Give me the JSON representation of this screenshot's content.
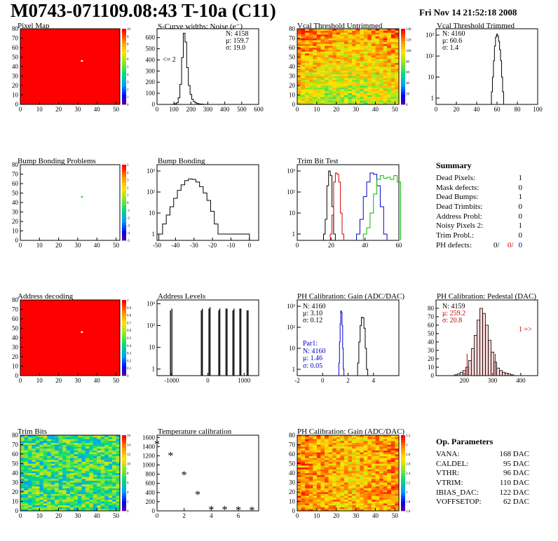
{
  "header": {
    "title": "M0743-071109.08:43 T-10a (C11)",
    "date": "Fri Nov 14 21:52:18 2008"
  },
  "colors": {
    "map_red": "#ff0000",
    "black": "#000000",
    "red": "#cc0000",
    "blue": "#0000cc",
    "green": "#00bb00"
  },
  "panels": {
    "pixel_map": {
      "title": "Pixel Map"
    },
    "scurve": {
      "title": "S-Curve widths: Noise (e⁻)",
      "stats": [
        "N: 4158",
        "μ: 159.7",
        "σ: 19.0"
      ],
      "annotation": "<= 2"
    },
    "vcal_untrimmed": {
      "title": "Vcal Threshold Untrimmed"
    },
    "vcal_trimmed": {
      "title": "Vcal Threshold Trimmed",
      "stats": [
        "N: 4160",
        "μ: 60.6",
        "σ:  1.4"
      ]
    },
    "bump_problems": {
      "title": "Bump Bonding Problems"
    },
    "bump_bonding": {
      "title": "Bump Bonding"
    },
    "trim_bit_test": {
      "title": "Trim Bit Test"
    },
    "summary": {
      "title": "Summary",
      "rows": [
        {
          "label": "Dead Pixels:",
          "value": "1"
        },
        {
          "label": "Mask defects:",
          "value": "0"
        },
        {
          "label": "Dead Bumps:",
          "value": "1"
        },
        {
          "label": "Dead Trimbits:",
          "value": "0"
        },
        {
          "label": "Address Probl:",
          "value": "0"
        },
        {
          "label": "Noisy Pixels 2:",
          "value": "1"
        },
        {
          "label": "Trim Probl.:",
          "value": "0"
        }
      ],
      "ph_label": "PH defects:",
      "ph_values": [
        "0/",
        "0/",
        "0"
      ]
    },
    "address_decoding": {
      "title": "Address decoding"
    },
    "address_levels": {
      "title": "Address Levels"
    },
    "ph_gain": {
      "title": "PH Calibration: Gain (ADC/DAC)",
      "stats": [
        "N: 4160",
        "μ: 3.10",
        "σ: 0.12"
      ],
      "par1": [
        "Par1:",
        "N: 4160",
        "μ: 1.46",
        "σ: 0.05"
      ]
    },
    "ph_pedestal": {
      "title": "PH Calibration: Pedestal (DAC)",
      "stats": [
        "N: 4159",
        "μ: 259.2",
        "σ: 20.8"
      ],
      "annotation": "1 =>"
    },
    "trim_bits": {
      "title": "Trim Bits"
    },
    "temperature": {
      "title": "Temperature calibration"
    },
    "ph_gain_map": {
      "title": "PH Calibration: Gain (ADC/DAC)"
    },
    "op_params": {
      "title": "Op. Parameters",
      "rows": [
        {
          "label": "VANA:",
          "value": "168 DAC"
        },
        {
          "label": "CALDEL:",
          "value": "95 DAC"
        },
        {
          "label": "VTHR:",
          "value": "96 DAC"
        },
        {
          "label": "VTRIM:",
          "value": "110 DAC"
        },
        {
          "label": "IBIAS_DAC:",
          "value": "122 DAC"
        },
        {
          "label": "VOFFSETOP:",
          "value": "62 DAC"
        }
      ]
    }
  },
  "chart_data": [
    {
      "id": "pixel_map",
      "type": "heatmap",
      "title": "Pixel Map",
      "xlim": [
        0,
        52
      ],
      "ylim": [
        0,
        80
      ],
      "xticks": [
        0,
        10,
        20,
        30,
        40,
        50
      ],
      "yticks": [
        0,
        10,
        20,
        30,
        40,
        50,
        60,
        70,
        80
      ],
      "fill": "#ff0000",
      "zlim": [
        0,
        10
      ],
      "zticks": [
        0,
        1,
        2,
        3,
        4,
        5,
        6,
        7,
        8,
        9,
        10
      ],
      "special": [
        {
          "x": 32,
          "y": 46,
          "color": "#ffffff"
        }
      ]
    },
    {
      "id": "scurve",
      "type": "bar",
      "title": "S-Curve widths: Noise (e⁻)",
      "xlim": [
        0,
        600
      ],
      "ylim": [
        0,
        680
      ],
      "xticks": [
        0,
        100,
        200,
        300,
        400,
        500,
        600
      ],
      "yticks": [
        0,
        100,
        200,
        300,
        400,
        500,
        600
      ],
      "x": [
        100,
        110,
        120,
        130,
        140,
        150,
        160,
        170,
        180,
        190,
        200,
        210,
        220,
        230,
        240,
        250,
        260,
        270,
        280,
        290
      ],
      "values": [
        2,
        6,
        15,
        60,
        180,
        420,
        640,
        560,
        330,
        170,
        90,
        45,
        25,
        14,
        8,
        5,
        3,
        2,
        1,
        1
      ]
    },
    {
      "id": "vcal_untrimmed",
      "type": "heatmap",
      "title": "Vcal Threshold Untrimmed",
      "xlim": [
        0,
        52
      ],
      "ylim": [
        0,
        80
      ],
      "xticks": [
        0,
        10,
        20,
        30,
        40,
        50
      ],
      "yticks": [
        0,
        10,
        20,
        30,
        40,
        50,
        60,
        70,
        80
      ],
      "zlim": [
        0,
        140
      ],
      "zticks": [
        0,
        20,
        40,
        60,
        80,
        100,
        120,
        140
      ]
    },
    {
      "id": "vcal_trimmed",
      "type": "bar",
      "title": "Vcal Threshold Trimmed",
      "log_y": true,
      "xlim": [
        0,
        100
      ],
      "ylim": [
        0.5,
        2000
      ],
      "xticks": [
        0,
        20,
        40,
        60,
        80,
        100
      ],
      "x": [
        55,
        56,
        57,
        58,
        59,
        60,
        61,
        62,
        63,
        64,
        65,
        66
      ],
      "values": [
        2,
        10,
        60,
        300,
        800,
        1100,
        900,
        500,
        200,
        60,
        10,
        2
      ]
    },
    {
      "id": "bump_problems",
      "type": "heatmap",
      "title": "Bump Bonding Problems",
      "xlim": [
        0,
        52
      ],
      "ylim": [
        0,
        80
      ],
      "xticks": [
        0,
        10,
        20,
        30,
        40,
        50
      ],
      "yticks": [
        0,
        10,
        20,
        30,
        40,
        50,
        60,
        70,
        80
      ],
      "fill": "#ffffff",
      "zlim": [
        -5,
        5
      ],
      "zticks": [
        -5,
        -4,
        -3,
        -2,
        -1,
        0,
        1,
        2,
        3,
        4,
        5
      ],
      "special": [
        {
          "x": 32,
          "y": 46,
          "color": "#33cc33"
        }
      ]
    },
    {
      "id": "bump_bonding",
      "type": "bar",
      "title": "Bump Bonding",
      "log_y": true,
      "xlim": [
        -50,
        5
      ],
      "ylim": [
        0.5,
        2000
      ],
      "xticks": [
        -50,
        -40,
        -30,
        -20,
        -10,
        0
      ],
      "x": [
        -48,
        -46,
        -44,
        -42,
        -40,
        -38,
        -36,
        -34,
        -32,
        -30,
        -28,
        -26,
        -24,
        -22,
        -20,
        -18,
        -16,
        -1
      ],
      "values": [
        1,
        3,
        8,
        20,
        50,
        120,
        220,
        350,
        420,
        400,
        300,
        180,
        90,
        40,
        12,
        3,
        1,
        1
      ]
    },
    {
      "id": "trim_bit_test",
      "type": "line",
      "title": "Trim Bit Test",
      "log_y": true,
      "xlim": [
        0,
        60
      ],
      "ylim": [
        0.5,
        2000
      ],
      "xticks": [
        0,
        20,
        40,
        60
      ],
      "series": [
        {
          "color": "#000000",
          "x": [
            16,
            17,
            18,
            19,
            20,
            21,
            22
          ],
          "values": [
            1,
            5,
            200,
            1000,
            600,
            20,
            1
          ]
        },
        {
          "color": "#cc0000",
          "x": [
            20,
            21,
            22,
            23,
            24,
            25,
            26,
            27
          ],
          "values": [
            1,
            8,
            300,
            800,
            700,
            300,
            10,
            1
          ]
        },
        {
          "color": "#0000cc",
          "x": [
            36,
            38,
            40,
            42,
            44,
            46,
            48,
            50,
            52
          ],
          "values": [
            1,
            5,
            60,
            300,
            800,
            700,
            200,
            20,
            1
          ]
        },
        {
          "color": "#00bb00",
          "x": [
            40,
            42,
            44,
            46,
            48,
            50,
            52,
            54,
            56,
            58,
            60
          ],
          "values": [
            1,
            2,
            10,
            80,
            400,
            600,
            450,
            500,
            400,
            600,
            300
          ]
        }
      ]
    },
    {
      "id": "address_decoding",
      "type": "heatmap",
      "title": "Address decoding",
      "xlim": [
        0,
        52
      ],
      "ylim": [
        0,
        80
      ],
      "xticks": [
        0,
        10,
        20,
        30,
        40,
        50
      ],
      "yticks": [
        0,
        10,
        20,
        30,
        40,
        50,
        60,
        70,
        80
      ],
      "fill": "#ff0000",
      "zlim": [
        0,
        1
      ],
      "zticks": [
        0,
        0.1,
        0.2,
        0.3,
        0.4,
        0.5,
        0.6,
        0.7,
        0.8,
        0.9,
        1
      ],
      "special": [
        {
          "x": 32,
          "y": 46,
          "color": "#ffffff"
        }
      ]
    },
    {
      "id": "address_levels",
      "type": "bar",
      "title": "Address Levels",
      "log_y": true,
      "xlim": [
        -1400,
        1400
      ],
      "ylim": [
        0.5,
        1500
      ],
      "xticks": [
        -1000,
        0,
        1000
      ],
      "x": [
        -1030,
        -990,
        -180,
        -150,
        30,
        60,
        300,
        330,
        500,
        530,
        690,
        720,
        880,
        910,
        1080,
        1110
      ],
      "values": [
        500,
        600,
        500,
        600,
        600,
        700,
        500,
        600,
        600,
        600,
        500,
        600,
        600,
        600,
        500,
        500
      ]
    },
    {
      "id": "ph_gain",
      "type": "bar",
      "title": "PH Calibration: Gain (ADC/DAC)",
      "log_y": true,
      "xlim": [
        -2,
        6
      ],
      "ylim": [
        0.5,
        2000
      ],
      "xticks": [
        -2,
        0,
        2,
        4
      ],
      "series": [
        {
          "color": "#000000",
          "x": [
            2.8,
            2.9,
            3.0,
            3.1,
            3.2,
            3.3,
            3.4,
            3.5
          ],
          "values": [
            2,
            20,
            120,
            300,
            280,
            90,
            10,
            1
          ]
        },
        {
          "color": "#0000cc",
          "x": [
            1.3,
            1.35,
            1.4,
            1.45,
            1.5,
            1.55,
            1.6,
            1.65
          ],
          "values": [
            2,
            20,
            150,
            600,
            500,
            120,
            10,
            1
          ]
        }
      ]
    },
    {
      "id": "ph_pedestal",
      "type": "bar",
      "title": "PH Calibration: Pedestal (DAC)",
      "xlim": [
        100,
        460
      ],
      "ylim": [
        0,
        90
      ],
      "xticks": [
        200,
        300,
        400
      ],
      "yticks": [
        0,
        10,
        20,
        30,
        40,
        50,
        60,
        70,
        80
      ],
      "x": [
        170,
        180,
        190,
        200,
        210,
        220,
        230,
        240,
        250,
        260,
        270,
        280,
        290,
        300,
        310,
        320,
        330,
        340,
        350,
        360,
        370
      ],
      "values": [
        1,
        2,
        4,
        6,
        10,
        18,
        32,
        48,
        66,
        80,
        74,
        60,
        42,
        28,
        16,
        9,
        6,
        4,
        3,
        2,
        1
      ]
    },
    {
      "id": "trim_bits",
      "type": "heatmap",
      "title": "Trim Bits",
      "xlim": [
        0,
        52
      ],
      "ylim": [
        0,
        80
      ],
      "xticks": [
        0,
        10,
        20,
        30,
        40,
        50
      ],
      "yticks": [
        0,
        10,
        20,
        30,
        40,
        50,
        60,
        70,
        80
      ],
      "zlim": [
        0,
        16
      ],
      "zticks": [
        0,
        2,
        4,
        6,
        8,
        10,
        12,
        14,
        16
      ]
    },
    {
      "id": "temperature",
      "type": "scatter",
      "title": "Temperature calibration",
      "xlim": [
        0,
        7.5
      ],
      "ylim": [
        0,
        1650
      ],
      "xticks": [
        0,
        2,
        4,
        6
      ],
      "yticks": [
        0,
        200,
        400,
        600,
        800,
        1000,
        1200,
        1400,
        1600
      ],
      "x": [
        0,
        1,
        2,
        3,
        4,
        5,
        6,
        7
      ],
      "values": [
        1450,
        1200,
        780,
        350,
        20,
        20,
        15,
        10
      ]
    },
    {
      "id": "ph_gain_map",
      "type": "heatmap",
      "title": "PH Calibration: Gain (ADC/DAC)",
      "xlim": [
        0,
        52
      ],
      "ylim": [
        0,
        80
      ],
      "xticks": [
        0,
        10,
        20,
        30,
        40,
        50
      ],
      "yticks": [
        0,
        10,
        20,
        30,
        40,
        50,
        60,
        70,
        80
      ],
      "zlim": [
        1.6,
        3.2
      ],
      "zticks": [
        1.6,
        1.8,
        2,
        2.2,
        2.4,
        2.6,
        2.8,
        3,
        3.2
      ]
    }
  ]
}
